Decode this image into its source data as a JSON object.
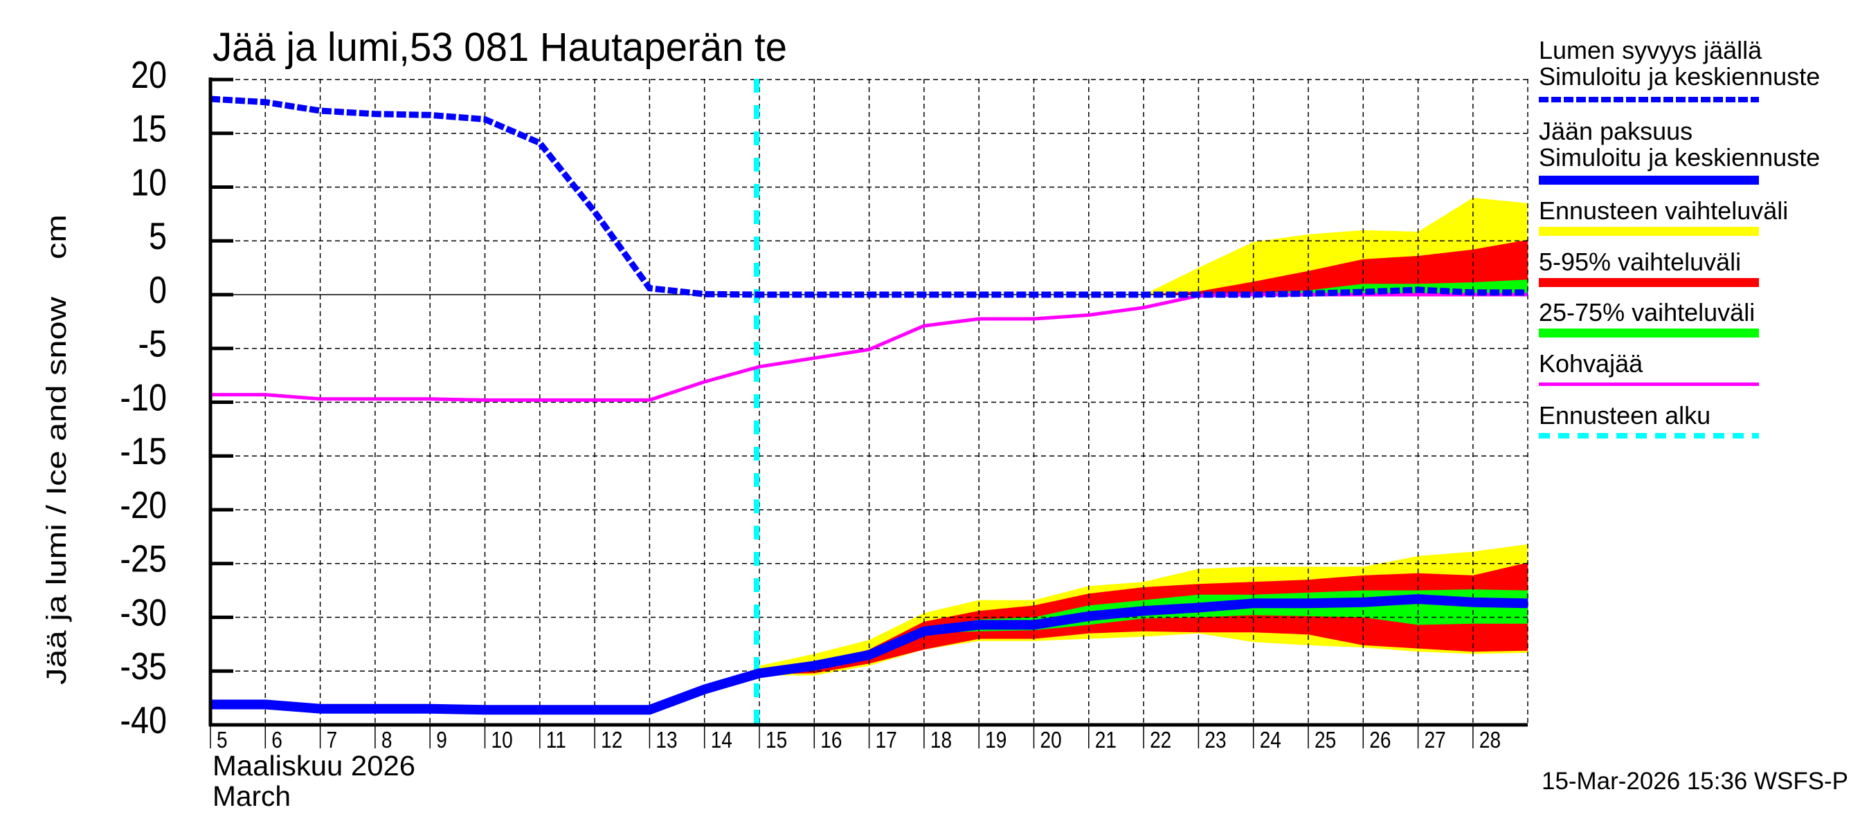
{
  "title": "Jää ja lumi,53 081 Hautaperän te",
  "timestamp": "15-Mar-2026 15:36 WSFS-P",
  "y_axis_label": "Jää ja lumi / Ice and snow    cm",
  "x_axis": {
    "month_fi": "Maaliskuu 2026",
    "month_en": "March",
    "day_labels": [
      "5",
      "6",
      "7",
      "8",
      "9",
      "10",
      "11",
      "12",
      "13",
      "14",
      "15",
      "16",
      "17",
      "18",
      "19",
      "20",
      "21",
      "22",
      "23",
      "24",
      "25",
      "26",
      "27",
      "28"
    ]
  },
  "legend": [
    {
      "line1": "Lumen syvyys jäällä",
      "line2": "Simuloitu ja keskiennuste",
      "color": "#0000ff",
      "style": "dashed-thick"
    },
    {
      "line1": "Jään paksuus",
      "line2": "Simuloitu ja keskiennuste",
      "color": "#0000ff",
      "style": "solid-thick"
    },
    {
      "line1": "Ennusteen vaihteluväli",
      "color": "#ffff00",
      "style": "band"
    },
    {
      "line1": "5-95% vaihteluväli",
      "color": "#ff0000",
      "style": "band"
    },
    {
      "line1": "25-75% vaihteluväli",
      "color": "#00ff00",
      "style": "band"
    },
    {
      "line1": "Kohvajää",
      "color": "#ff00ff",
      "style": "solid-thin"
    },
    {
      "line1": "Ennusteen alku",
      "color": "#00ffff",
      "style": "dashed"
    }
  ],
  "colors": {
    "snow": "#0000ff",
    "ice": "#0000ff",
    "range_full": "#ffff00",
    "range_5_95": "#ff0000",
    "range_25_75": "#00ff00",
    "slush": "#ff00ff",
    "forecast_start": "#00ffff",
    "grid": "#000000",
    "axis": "#000000"
  },
  "chart_data": {
    "type": "line",
    "title": "Jää ja lumi,53 081 Hautaperän te",
    "xlabel": "Maaliskuu 2026 / March",
    "ylabel": "Jää ja lumi / Ice and snow cm",
    "ylim": [
      -40,
      20
    ],
    "xlim": [
      5,
      29
    ],
    "yticks": [
      20,
      15,
      10,
      5,
      0,
      -5,
      -10,
      -15,
      -20,
      -25,
      -30,
      -35,
      -40
    ],
    "grid": true,
    "legend_position": "right",
    "forecast_start_day": 14.95,
    "series": [
      {
        "name": "Lumen syvyys jäällä – Simuloitu ja keskiennuste",
        "style": "dashed",
        "x": [
          5,
          6,
          7,
          8,
          9,
          10,
          11,
          12,
          13,
          14,
          15,
          16,
          17,
          18,
          19,
          20,
          21,
          22,
          23,
          24,
          25,
          26,
          27,
          28,
          29
        ],
        "values": [
          18.2,
          17.9,
          17.1,
          16.8,
          16.7,
          16.3,
          14.1,
          7.7,
          0.6,
          0.05,
          0,
          0,
          0,
          0,
          0,
          0,
          0,
          0,
          0,
          0,
          0.1,
          0.25,
          0.45,
          0.2,
          0.2
        ]
      },
      {
        "name": "Jään paksuus – Simuloitu ja keskiennuste",
        "style": "solid-thick",
        "x": [
          5,
          6,
          7,
          8,
          9,
          10,
          11,
          12,
          13,
          14,
          15,
          16,
          17,
          18,
          19,
          20,
          21,
          22,
          23,
          24,
          25,
          26,
          27,
          28,
          29
        ],
        "values": [
          -38.1,
          -38.1,
          -38.5,
          -38.5,
          -38.5,
          -38.6,
          -38.6,
          -38.6,
          -38.6,
          -36.7,
          -35.2,
          -34.5,
          -33.5,
          -31.3,
          -30.7,
          -30.7,
          -29.9,
          -29.4,
          -29.1,
          -28.7,
          -28.7,
          -28.6,
          -28.3,
          -28.6,
          -28.7
        ]
      },
      {
        "name": "Kohvajää",
        "style": "solid-thin",
        "x": [
          5,
          6,
          7,
          8,
          9,
          10,
          11,
          12,
          13,
          14,
          15,
          16,
          17,
          18,
          19,
          20,
          21,
          22,
          23,
          24,
          25,
          26,
          27,
          28,
          29
        ],
        "values": [
          -9.3,
          -9.3,
          -9.7,
          -9.7,
          -9.7,
          -9.8,
          -9.8,
          -9.8,
          -9.8,
          -8.1,
          -6.7,
          -5.9,
          -5.1,
          -2.9,
          -2.25,
          -2.25,
          -1.9,
          -1.2,
          -0.1,
          0,
          0,
          0,
          0,
          0,
          0
        ]
      }
    ],
    "bands": [
      {
        "name": "Ennusteen vaihteluväli (lumi)",
        "color": "#ffff00",
        "x": [
          21,
          22,
          23,
          24,
          25,
          26,
          27,
          28,
          29
        ],
        "upper": [
          0,
          0,
          2.5,
          4.9,
          5.6,
          6.0,
          5.85,
          9.0,
          8.5
        ],
        "lower": [
          0,
          0,
          0,
          0,
          0,
          0,
          0,
          0,
          0
        ]
      },
      {
        "name": "5-95% vaihteluväli (lumi)",
        "color": "#ff0000",
        "x": [
          22,
          23,
          24,
          25,
          26,
          27,
          28,
          29
        ],
        "upper": [
          0,
          0.3,
          1.2,
          2.2,
          3.3,
          3.6,
          4.2,
          5.1
        ],
        "lower": [
          0,
          0,
          0,
          0,
          0,
          0,
          0,
          0
        ]
      },
      {
        "name": "25-75% vaihteluväli (lumi)",
        "color": "#00ff00",
        "x": [
          24,
          25,
          26,
          27,
          28,
          29
        ],
        "upper": [
          0.1,
          0.4,
          1.0,
          1.0,
          1.15,
          1.4
        ],
        "lower": [
          0,
          0,
          0,
          0,
          0,
          0
        ]
      },
      {
        "name": "Ennusteen vaihteluväli (jää)",
        "color": "#ffff00",
        "x": [
          14.6,
          15,
          16,
          17,
          18,
          19,
          20,
          21,
          22,
          23,
          24,
          25,
          26,
          27,
          28,
          29
        ],
        "upper": [
          -35.6,
          -34.5,
          -33.4,
          -32.1,
          -29.6,
          -28.4,
          -28.4,
          -27.1,
          -26.7,
          -25.5,
          -25.3,
          -25.3,
          -25.3,
          -24.3,
          -23.9,
          -23.2
        ],
        "lower": [
          -35.9,
          -35.4,
          -35.4,
          -34.5,
          -33.0,
          -32.2,
          -32.2,
          -32.0,
          -31.8,
          -31.5,
          -32.3,
          -32.6,
          -32.8,
          -33.2,
          -33.4,
          -33.3
        ]
      },
      {
        "name": "5-95% vaihteluväli (jää)",
        "color": "#ff0000",
        "x": [
          15,
          16,
          17,
          18,
          19,
          20,
          21,
          22,
          23,
          24,
          25,
          26,
          27,
          28,
          29
        ],
        "upper": [
          -35.1,
          -34.4,
          -33.0,
          -30.4,
          -29.4,
          -28.9,
          -27.8,
          -27.2,
          -26.9,
          -26.7,
          -26.5,
          -26.1,
          -25.9,
          -26.1,
          -24.9
        ],
        "lower": [
          -35.3,
          -35.2,
          -34.3,
          -33.0,
          -32.0,
          -32.0,
          -31.5,
          -31.3,
          -31.4,
          -31.4,
          -31.6,
          -32.6,
          -32.9,
          -33.2,
          -33.1
        ]
      },
      {
        "name": "25-75% vaihteluväli (jää)",
        "color": "#00ff00",
        "x": [
          18,
          19,
          20,
          21,
          22,
          23,
          24,
          25,
          26,
          27,
          28,
          29
        ],
        "upper": [
          -31.2,
          -30.2,
          -30.0,
          -28.9,
          -28.4,
          -27.9,
          -27.9,
          -27.7,
          -27.5,
          -27.5,
          -27.4,
          -27.5
        ],
        "lower": [
          -31.5,
          -31.3,
          -31.2,
          -30.7,
          -30.1,
          -30.0,
          -29.8,
          -29.9,
          -30.0,
          -30.7,
          -30.6,
          -30.6
        ]
      }
    ]
  }
}
